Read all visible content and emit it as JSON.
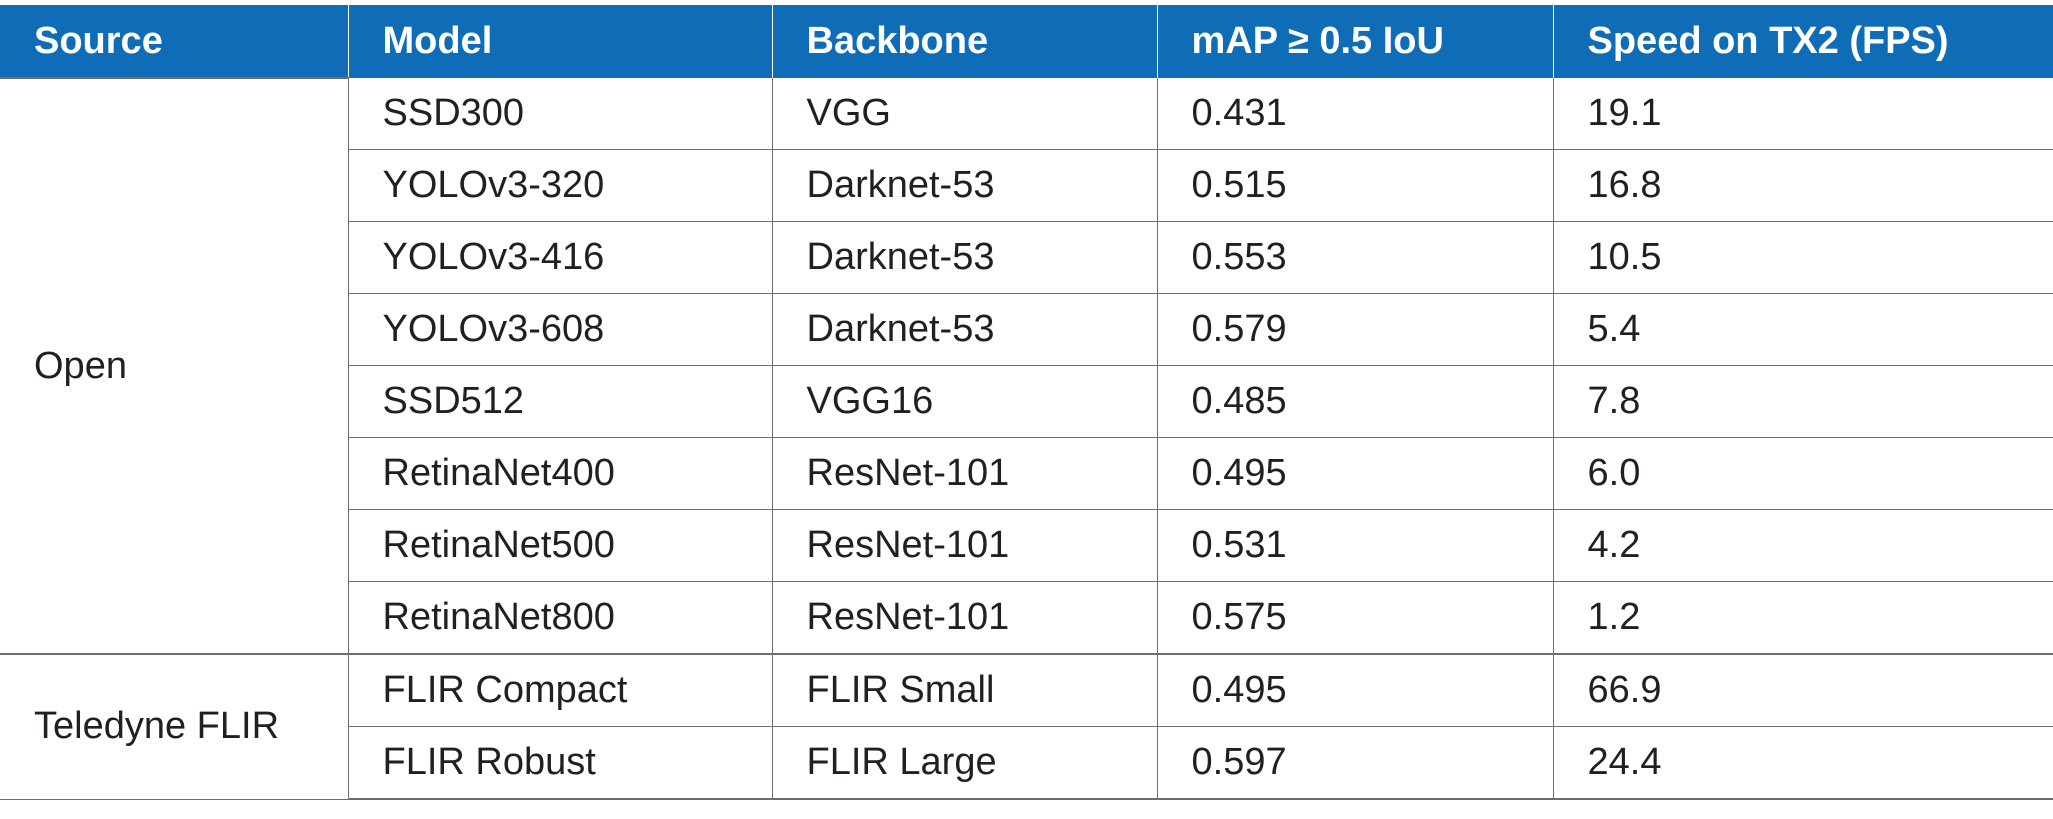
{
  "table": {
    "headers": [
      "Source",
      "Model",
      "Backbone",
      "mAP ≥ 0.5 IoU",
      "Speed on TX2 (FPS)"
    ],
    "groups": [
      {
        "source": "Open",
        "rows": [
          {
            "model": "SSD300",
            "backbone": "VGG",
            "map": "0.431",
            "fps": "19.1"
          },
          {
            "model": "YOLOv3-320",
            "backbone": "Darknet-53",
            "map": "0.515",
            "fps": "16.8"
          },
          {
            "model": "YOLOv3-416",
            "backbone": "Darknet-53",
            "map": "0.553",
            "fps": "10.5"
          },
          {
            "model": "YOLOv3-608",
            "backbone": "Darknet-53",
            "map": "0.579",
            "fps": "5.4"
          },
          {
            "model": "SSD512",
            "backbone": "VGG16",
            "map": "0.485",
            "fps": "7.8"
          },
          {
            "model": "RetinaNet400",
            "backbone": "ResNet-101",
            "map": "0.495",
            "fps": "6.0"
          },
          {
            "model": "RetinaNet500",
            "backbone": "ResNet-101",
            "map": "0.531",
            "fps": "4.2"
          },
          {
            "model": "RetinaNet800",
            "backbone": "ResNet-101",
            "map": "0.575",
            "fps": "1.2"
          }
        ]
      },
      {
        "source": "Teledyne FLIR",
        "rows": [
          {
            "model": "FLIR Compact",
            "backbone": "FLIR Small",
            "map": "0.495",
            "fps": "66.9"
          },
          {
            "model": "FLIR Robust",
            "backbone": "FLIR Large",
            "map": "0.597",
            "fps": "24.4"
          }
        ]
      }
    ]
  }
}
